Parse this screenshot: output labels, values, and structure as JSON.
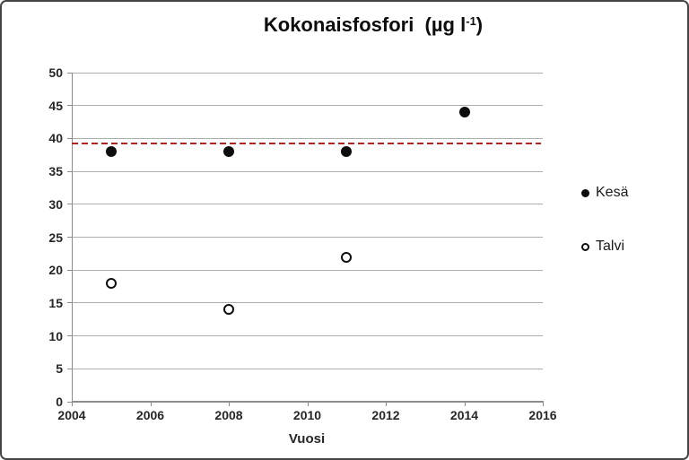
{
  "title": {
    "text": "Kokonaisfosfori  (µg l",
    "sup": "-1",
    "suffix": ")"
  },
  "legend": {
    "items": [
      {
        "label": "Kesä",
        "marker": "filled-circle"
      },
      {
        "label": "Talvi",
        "marker": "open-circle"
      }
    ],
    "position": "right"
  },
  "chart_data": {
    "type": "scatter",
    "title": "Kokonaisfosfori (µg l⁻¹)",
    "xlabel": "Vuosi",
    "ylabel": "",
    "xlim": [
      2004,
      2016
    ],
    "ylim": [
      0,
      50
    ],
    "xticks": [
      2004,
      2006,
      2008,
      2010,
      2012,
      2014,
      2016
    ],
    "yticks": [
      0,
      5,
      10,
      15,
      20,
      25,
      30,
      35,
      40,
      45,
      50
    ],
    "grid": "horizontal",
    "legend_position": "right",
    "series": [
      {
        "name": "Kesä",
        "marker": "filled-circle",
        "color": "#0d0d0d",
        "points": [
          {
            "x": 2005,
            "y": 38
          },
          {
            "x": 2008,
            "y": 38
          },
          {
            "x": 2011,
            "y": 38
          },
          {
            "x": 2014,
            "y": 44
          }
        ]
      },
      {
        "name": "Talvi",
        "marker": "open-circle",
        "color": "#0d0d0d",
        "points": [
          {
            "x": 2005,
            "y": 18
          },
          {
            "x": 2008,
            "y": 14
          },
          {
            "x": 2011,
            "y": 22
          }
        ]
      }
    ],
    "reference_line": {
      "y": 39.3,
      "style": "dashed",
      "color": "#b22222"
    }
  }
}
